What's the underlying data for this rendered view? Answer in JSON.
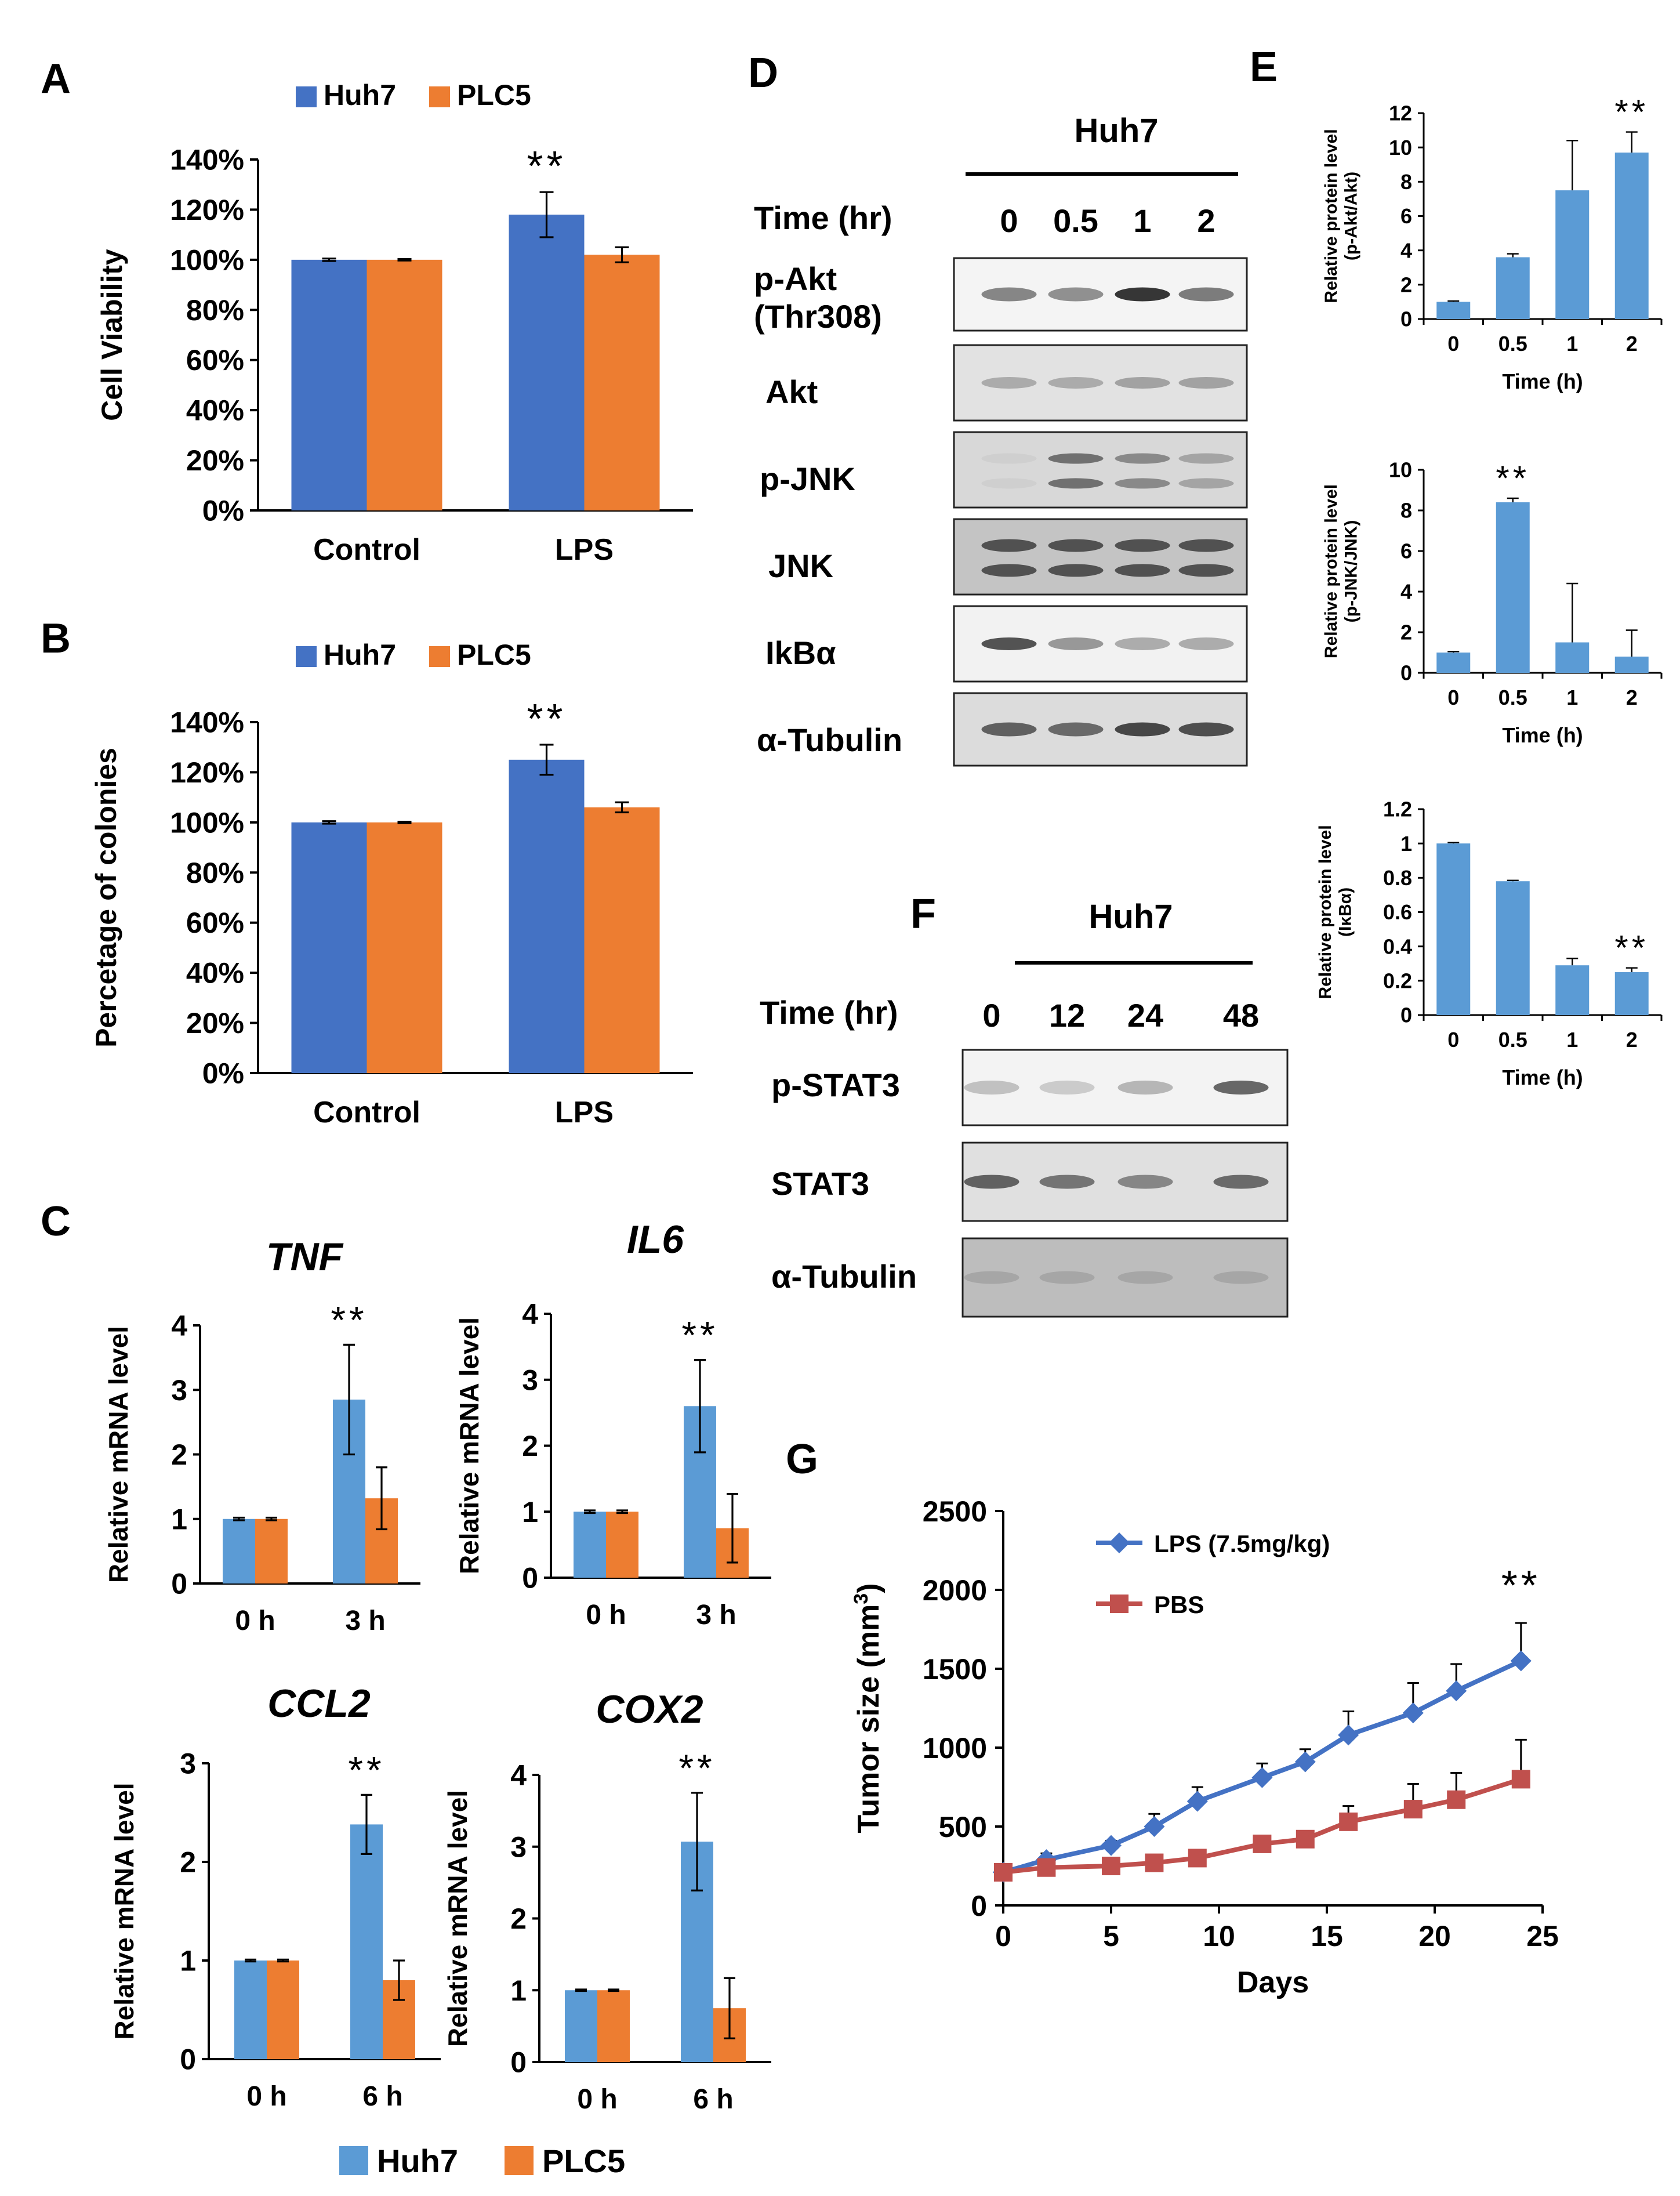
{
  "colors": {
    "huh7_dark": "#4472C4",
    "plc5_dark": "#ED7D31",
    "huh7_light": "#5B9BD5",
    "plc5_light": "#ED7D31",
    "lps_line": "#4472C4",
    "pbs_line": "#C0504D",
    "blot_band": "#2b2b2b"
  },
  "panel_labels": {
    "A": "A",
    "B": "B",
    "C": "C",
    "D": "D",
    "E": "E",
    "F": "F",
    "G": "G"
  },
  "significance": "**",
  "panel_C_legend": {
    "huh7": "Huh7",
    "plc5": "PLC5"
  },
  "panel_D": {
    "cell_line": "Huh7",
    "time_label": "Time (hr)",
    "timepoints": [
      "0",
      "0.5",
      "1",
      "2"
    ],
    "rows": [
      "p-Akt (Thr308)",
      "Akt",
      "p-JNK",
      "JNK",
      "IkBα",
      "α-Tubulin"
    ],
    "row_label_akt": "Akt",
    "p_akt_line1": "p-Akt",
    "p_akt_line2": "(Thr308)",
    "pjnk": "p-JNK",
    "jnk": "JNK",
    "ikba": "IkBα",
    "tubulin": "α-Tubulin",
    "band_intensity": [
      [
        0.55,
        0.5,
        0.95,
        0.6
      ],
      [
        0.3,
        0.3,
        0.35,
        0.35
      ],
      [
        0.05,
        0.6,
        0.45,
        0.3
      ],
      [
        0.75,
        0.75,
        0.75,
        0.75
      ],
      [
        0.8,
        0.45,
        0.35,
        0.35
      ],
      [
        0.7,
        0.65,
        0.85,
        0.8
      ]
    ]
  },
  "panel_F": {
    "cell_line": "Huh7",
    "time_label": "Time (hr)",
    "timepoints": [
      "0",
      "12",
      "24",
      "48"
    ],
    "pstat3": "p-STAT3",
    "stat3": "STAT3",
    "tubulin": "α-Tubulin",
    "band_intensity": [
      [
        0.25,
        0.2,
        0.3,
        0.7
      ],
      [
        0.7,
        0.6,
        0.5,
        0.65
      ],
      [
        0.15,
        0.15,
        0.15,
        0.15
      ]
    ]
  },
  "chart_data": [
    {
      "id": "A",
      "type": "bar",
      "categories": [
        "Control",
        "LPS"
      ],
      "series": [
        {
          "name": "Huh7",
          "values": [
            100,
            118
          ],
          "errors": [
            0.5,
            9
          ]
        },
        {
          "name": "PLC5",
          "values": [
            100,
            102
          ],
          "errors": [
            0.3,
            3
          ]
        }
      ],
      "ylabel": "Cell Viability",
      "ylim": [
        0,
        140
      ],
      "yticks": [
        "0%",
        "20%",
        "40%",
        "60%",
        "80%",
        "100%",
        "120%",
        "140%"
      ],
      "legend": "top",
      "annotations": [
        {
          "text": "**",
          "category": "LPS",
          "series": "Huh7"
        }
      ]
    },
    {
      "id": "B",
      "type": "bar",
      "categories": [
        "Control",
        "LPS"
      ],
      "series": [
        {
          "name": "Huh7",
          "values": [
            100,
            125
          ],
          "errors": [
            0.5,
            6
          ]
        },
        {
          "name": "PLC5",
          "values": [
            100,
            106
          ],
          "errors": [
            0.3,
            2
          ]
        }
      ],
      "ylabel": "Percetage of colonies",
      "ylim": [
        0,
        140
      ],
      "yticks": [
        "0%",
        "20%",
        "40%",
        "60%",
        "80%",
        "100%",
        "120%",
        "140%"
      ],
      "legend": "top",
      "annotations": [
        {
          "text": "**",
          "category": "LPS",
          "series": "Huh7"
        }
      ]
    },
    {
      "id": "C-TNF",
      "type": "bar",
      "title": "TNF",
      "categories": [
        "0 h",
        "3 h"
      ],
      "series": [
        {
          "name": "Huh7",
          "values": [
            1.0,
            2.85
          ],
          "errors": [
            0.02,
            0.85
          ]
        },
        {
          "name": "PLC5",
          "values": [
            1.0,
            1.32
          ],
          "errors": [
            0.02,
            0.48
          ]
        }
      ],
      "ylabel": "Relative mRNA level",
      "ylim": [
        0,
        4
      ],
      "yticks": [
        "0",
        "1",
        "2",
        "3",
        "4"
      ],
      "annotations": [
        {
          "text": "**",
          "category": "3 h",
          "series": "Huh7"
        }
      ]
    },
    {
      "id": "C-IL6",
      "type": "bar",
      "title": "IL6",
      "categories": [
        "0 h",
        "3 h"
      ],
      "series": [
        {
          "name": "Huh7",
          "values": [
            1.0,
            2.6
          ],
          "errors": [
            0.02,
            0.7
          ]
        },
        {
          "name": "PLC5",
          "values": [
            1.0,
            0.75
          ],
          "errors": [
            0.02,
            0.52
          ]
        }
      ],
      "ylabel": "Relative mRNA level",
      "ylim": [
        0,
        4
      ],
      "yticks": [
        "0",
        "1",
        "2",
        "3",
        "4"
      ],
      "annotations": [
        {
          "text": "**",
          "category": "3 h",
          "series": "Huh7"
        }
      ]
    },
    {
      "id": "C-CCL2",
      "type": "bar",
      "title": "CCL2",
      "categories": [
        "0 h",
        "6 h"
      ],
      "series": [
        {
          "name": "Huh7",
          "values": [
            1.0,
            2.38
          ],
          "errors": [
            0.01,
            0.3
          ]
        },
        {
          "name": "PLC5",
          "values": [
            1.0,
            0.8
          ],
          "errors": [
            0.01,
            0.2
          ]
        }
      ],
      "ylabel": "Relative mRNA level",
      "ylim": [
        0,
        3
      ],
      "yticks": [
        "0",
        "1",
        "2",
        "3"
      ],
      "annotations": [
        {
          "text": "**",
          "category": "6 h",
          "series": "Huh7"
        }
      ]
    },
    {
      "id": "C-COX2",
      "type": "bar",
      "title": "COX2",
      "categories": [
        "0 h",
        "6 h"
      ],
      "series": [
        {
          "name": "Huh7",
          "values": [
            1.0,
            3.07
          ],
          "errors": [
            0.01,
            0.68
          ]
        },
        {
          "name": "PLC5",
          "values": [
            1.0,
            0.75
          ],
          "errors": [
            0.01,
            0.42
          ]
        }
      ],
      "ylabel": "Relative mRNA level",
      "ylim": [
        0,
        4
      ],
      "yticks": [
        "0",
        "1",
        "2",
        "3",
        "4"
      ],
      "annotations": [
        {
          "text": "**",
          "category": "6 h",
          "series": "Huh7"
        }
      ]
    },
    {
      "id": "E-Akt",
      "type": "bar",
      "categories": [
        "0",
        "0.5",
        "1",
        "2"
      ],
      "series": [
        {
          "values": [
            1.0,
            3.6,
            7.5,
            9.7
          ],
          "errors": [
            0.05,
            0.2,
            2.9,
            1.2
          ]
        }
      ],
      "ylabel": "Relative protein level (p-Akt/Akt)",
      "ylabel_lines": [
        "Relative protein level",
        "(p-Akt/Akt)"
      ],
      "xlabel": "Time (h)",
      "ylim": [
        0,
        12
      ],
      "yticks": [
        "0",
        "2",
        "4",
        "6",
        "8",
        "10",
        "12"
      ],
      "annotations": [
        {
          "text": "**",
          "category": "2"
        }
      ]
    },
    {
      "id": "E-JNK",
      "type": "bar",
      "categories": [
        "0",
        "0.5",
        "1",
        "2"
      ],
      "series": [
        {
          "values": [
            1.0,
            8.4,
            1.5,
            0.8
          ],
          "errors": [
            0.05,
            0.2,
            2.9,
            1.3
          ]
        }
      ],
      "ylabel": "Relative protein level (p-JNK/JNK)",
      "ylabel_lines": [
        "Relative protein level",
        "(p-JNK/JNK)"
      ],
      "xlabel": "Time (h)",
      "ylim": [
        0,
        10
      ],
      "yticks": [
        "0",
        "2",
        "4",
        "6",
        "8",
        "10"
      ],
      "annotations": [
        {
          "text": "**",
          "category": "0.5"
        }
      ]
    },
    {
      "id": "E-IkBa",
      "type": "bar",
      "categories": [
        "0",
        "0.5",
        "1",
        "2"
      ],
      "series": [
        {
          "values": [
            1.0,
            0.78,
            0.29,
            0.25
          ],
          "errors": [
            0.005,
            0.005,
            0.04,
            0.025
          ]
        }
      ],
      "ylabel": "Relative protein level (IκBα)",
      "ylabel_lines": [
        "Relative protein level",
        "(IκBα)"
      ],
      "xlabel": "Time (h)",
      "ylim": [
        0,
        1.2
      ],
      "yticks": [
        "0",
        "0.2",
        "0.4",
        "0.6",
        "0.8",
        "1",
        "1.2"
      ],
      "annotations": [
        {
          "text": "**",
          "category": "2"
        }
      ]
    },
    {
      "id": "G",
      "type": "line",
      "x": [
        0,
        2,
        5,
        7,
        9,
        12,
        14,
        16,
        19,
        21,
        24
      ],
      "series": [
        {
          "name": "LPS (7.5mg/kg)",
          "values": [
            210,
            290,
            380,
            500,
            660,
            810,
            910,
            1080,
            1220,
            1360,
            1550
          ],
          "errors": [
            40,
            40,
            30,
            80,
            90,
            90,
            80,
            150,
            190,
            170,
            240
          ]
        },
        {
          "name": "PBS",
          "values": [
            210,
            240,
            250,
            270,
            300,
            390,
            420,
            530,
            610,
            670,
            800
          ],
          "errors": [
            40,
            40,
            30,
            40,
            40,
            40,
            50,
            100,
            160,
            170,
            250
          ]
        }
      ],
      "xlabel": "Days",
      "ylabel": "Tumor size (mm³)",
      "ylabel_main": "Tumor size (mm",
      "ylabel_sup": "3",
      "ylabel_close": ")",
      "xlim": [
        0,
        25
      ],
      "ylim": [
        0,
        2500
      ],
      "xticks": [
        "0",
        "5",
        "10",
        "15",
        "20",
        "25"
      ],
      "yticks": [
        "0",
        "500",
        "1000",
        "1500",
        "2000",
        "2500"
      ],
      "legend": "top-left",
      "annotations": [
        {
          "text": "**",
          "x": 24
        }
      ]
    }
  ]
}
